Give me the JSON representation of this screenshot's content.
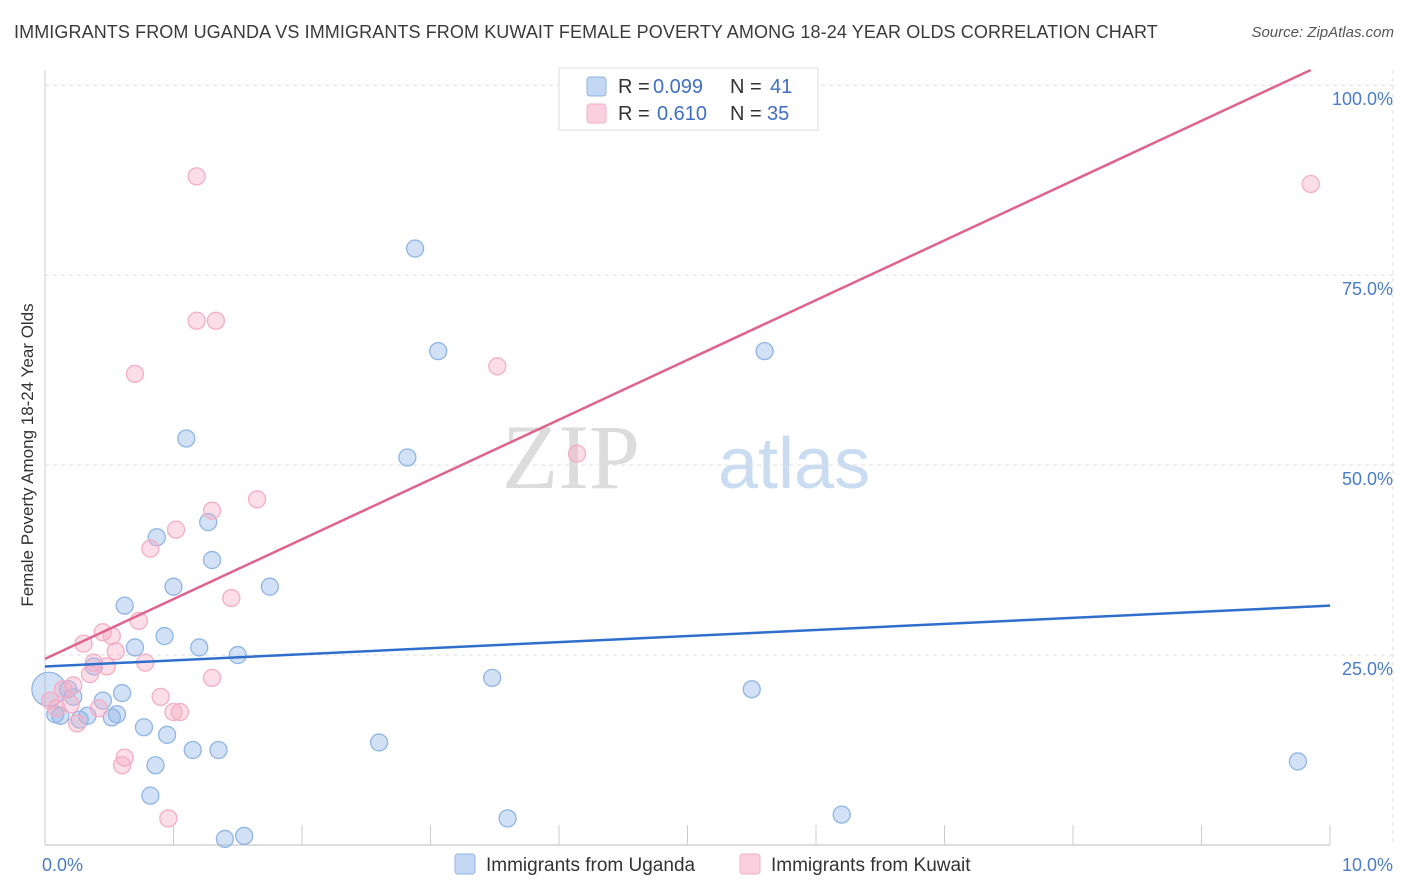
{
  "title": "IMMIGRANTS FROM UGANDA VS IMMIGRANTS FROM KUWAIT FEMALE POVERTY AMONG 18-24 YEAR OLDS CORRELATION CHART",
  "source": "Source: ZipAtlas.com",
  "watermark": {
    "zip": "ZIP",
    "atlas": "atlas"
  },
  "chart_data": {
    "type": "scatter",
    "title": "IMMIGRANTS FROM UGANDA VS IMMIGRANTS FROM KUWAIT FEMALE POVERTY AMONG 18-24 YEAR OLDS CORRELATION CHART",
    "xlabel": "",
    "ylabel": "Female Poverty Among 18-24 Year Olds",
    "xlim": [
      0,
      10
    ],
    "ylim": [
      0,
      102
    ],
    "x_tick_labels": [
      {
        "value": 0,
        "label": "0.0%"
      },
      {
        "value": 10,
        "label": "10.0%"
      }
    ],
    "y_tick_labels": [
      {
        "value": 25,
        "label": "25.0%"
      },
      {
        "value": 50,
        "label": "50.0%"
      },
      {
        "value": 75,
        "label": "75.0%"
      },
      {
        "value": 100,
        "label": "100.0%"
      }
    ],
    "grid": true,
    "legend_position": "top-center",
    "series": [
      {
        "name": "Immigrants from Uganda",
        "color": "#8fb5e6",
        "line_color": "#2f6fcb",
        "R": "0.099",
        "N": "41",
        "trend": {
          "x0": 0,
          "y0": 23.5,
          "x1": 10,
          "y1": 31.5
        },
        "points": [
          {
            "x": 0.03,
            "y": 20.5,
            "size": "large"
          },
          {
            "x": 0.08,
            "y": 17.2
          },
          {
            "x": 0.12,
            "y": 17.0
          },
          {
            "x": 0.18,
            "y": 20.5
          },
          {
            "x": 0.22,
            "y": 19.5
          },
          {
            "x": 0.27,
            "y": 16.5
          },
          {
            "x": 0.33,
            "y": 17.0
          },
          {
            "x": 0.38,
            "y": 23.5
          },
          {
            "x": 0.45,
            "y": 19.0
          },
          {
            "x": 0.52,
            "y": 16.8
          },
          {
            "x": 0.56,
            "y": 17.2
          },
          {
            "x": 0.62,
            "y": 31.5
          },
          {
            "x": 0.7,
            "y": 26.0
          },
          {
            "x": 0.77,
            "y": 15.5
          },
          {
            "x": 0.82,
            "y": 6.5
          },
          {
            "x": 0.87,
            "y": 40.5
          },
          {
            "x": 0.93,
            "y": 27.5
          },
          {
            "x": 0.95,
            "y": 14.5
          },
          {
            "x": 1.0,
            "y": 34.0
          },
          {
            "x": 0.86,
            "y": 10.5
          },
          {
            "x": 1.1,
            "y": 53.5
          },
          {
            "x": 1.15,
            "y": 12.5
          },
          {
            "x": 1.2,
            "y": 26.0
          },
          {
            "x": 1.27,
            "y": 42.5
          },
          {
            "x": 1.3,
            "y": 37.5
          },
          {
            "x": 1.35,
            "y": 12.5
          },
          {
            "x": 1.4,
            "y": 0.8
          },
          {
            "x": 1.5,
            "y": 25.0
          },
          {
            "x": 1.55,
            "y": 1.2
          },
          {
            "x": 1.75,
            "y": 34.0
          },
          {
            "x": 2.6,
            "y": 13.5
          },
          {
            "x": 2.82,
            "y": 51.0
          },
          {
            "x": 2.88,
            "y": 78.5
          },
          {
            "x": 3.06,
            "y": 65.0
          },
          {
            "x": 3.48,
            "y": 22.0
          },
          {
            "x": 3.6,
            "y": 3.5
          },
          {
            "x": 5.5,
            "y": 20.5
          },
          {
            "x": 5.6,
            "y": 65.0
          },
          {
            "x": 6.2,
            "y": 4.0
          },
          {
            "x": 9.75,
            "y": 11.0
          },
          {
            "x": 0.6,
            "y": 20.0
          }
        ]
      },
      {
        "name": "Immigrants from Kuwait",
        "color": "#f5adc4",
        "line_color": "#e0628e",
        "R": "0.610",
        "N": "35",
        "trend": {
          "x0": 0,
          "y0": 24.5,
          "x1": 9.85,
          "y1": 102
        },
        "points": [
          {
            "x": 0.04,
            "y": 19.0
          },
          {
            "x": 0.09,
            "y": 18.0
          },
          {
            "x": 0.14,
            "y": 20.5
          },
          {
            "x": 0.2,
            "y": 18.5
          },
          {
            "x": 0.25,
            "y": 16.0
          },
          {
            "x": 0.3,
            "y": 26.5
          },
          {
            "x": 0.35,
            "y": 22.5
          },
          {
            "x": 0.38,
            "y": 24.0
          },
          {
            "x": 0.42,
            "y": 18.0
          },
          {
            "x": 0.45,
            "y": 28.0
          },
          {
            "x": 0.48,
            "y": 23.5
          },
          {
            "x": 0.52,
            "y": 27.5
          },
          {
            "x": 0.55,
            "y": 25.5
          },
          {
            "x": 0.6,
            "y": 10.5
          },
          {
            "x": 0.62,
            "y": 11.5
          },
          {
            "x": 0.7,
            "y": 62.0
          },
          {
            "x": 0.73,
            "y": 29.5
          },
          {
            "x": 0.78,
            "y": 24.0
          },
          {
            "x": 0.82,
            "y": 39.0
          },
          {
            "x": 0.9,
            "y": 19.5
          },
          {
            "x": 0.96,
            "y": 3.5
          },
          {
            "x": 1.0,
            "y": 17.5
          },
          {
            "x": 1.02,
            "y": 41.5
          },
          {
            "x": 1.05,
            "y": 17.5
          },
          {
            "x": 1.18,
            "y": 88.0
          },
          {
            "x": 1.18,
            "y": 69.0
          },
          {
            "x": 1.3,
            "y": 44.0
          },
          {
            "x": 1.3,
            "y": 22.0
          },
          {
            "x": 1.33,
            "y": 69.0
          },
          {
            "x": 1.45,
            "y": 32.5
          },
          {
            "x": 1.65,
            "y": 45.5
          },
          {
            "x": 3.52,
            "y": 63.0
          },
          {
            "x": 4.14,
            "y": 51.5
          },
          {
            "x": 9.85,
            "y": 87.0
          },
          {
            "x": 0.22,
            "y": 21.0
          }
        ]
      }
    ]
  },
  "legend": {
    "r_label": "R =",
    "n_label": "N =",
    "items": [
      {
        "r": "0.099",
        "n": "41"
      },
      {
        "r": "0.610",
        "n": "35"
      }
    ]
  },
  "bottom_legend": [
    "Immigrants from Uganda",
    "Immigrants from Kuwait"
  ]
}
